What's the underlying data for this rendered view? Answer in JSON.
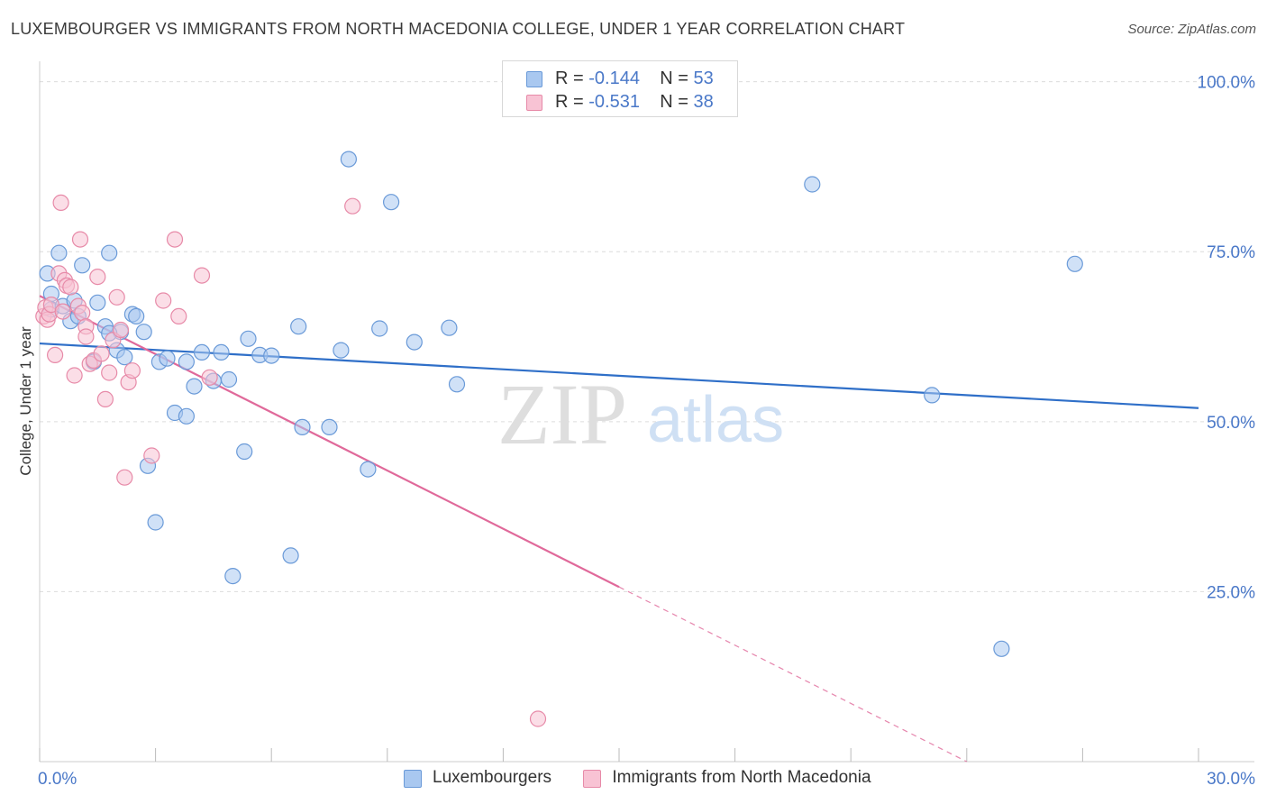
{
  "title": "LUXEMBOURGER VS IMMIGRANTS FROM NORTH MACEDONIA COLLEGE, UNDER 1 YEAR CORRELATION CHART",
  "source": "Source: ZipAtlas.com",
  "watermark": {
    "zip": "ZIP",
    "atlas": "atlas"
  },
  "legend_top": [
    {
      "r_label": "R = ",
      "r_value": "-0.144",
      "n_label": "N = ",
      "n_value": "53",
      "color": "#a9c8f0",
      "border": "#6a9ad8"
    },
    {
      "r_label": "R = ",
      "r_value": "-0.531",
      "n_label": "N = ",
      "n_value": "38",
      "color": "#f8c3d4",
      "border": "#e78aa8"
    }
  ],
  "legend_bottom": [
    {
      "label": "Luxembourgers",
      "color": "#a9c8f0",
      "border": "#6a9ad8"
    },
    {
      "label": "Immigrants from North Macedonia",
      "color": "#f8c3d4",
      "border": "#e78aa8"
    }
  ],
  "chart_data": {
    "type": "scatter",
    "title": "LUXEMBOURGER VS IMMIGRANTS FROM NORTH MACEDONIA COLLEGE, UNDER 1 YEAR CORRELATION CHART",
    "xlabel": "",
    "ylabel": "College, Under 1 year",
    "xlim": [
      0,
      30
    ],
    "ylim": [
      0,
      103
    ],
    "x_tick_labels": [
      {
        "value": 0,
        "label": "0.0%"
      },
      {
        "value": 30,
        "label": "30.0%"
      }
    ],
    "x_minor_ticks": [
      0,
      3,
      6,
      9,
      12,
      15,
      18,
      21,
      24,
      27,
      30
    ],
    "y_tick_labels": [
      {
        "value": 100,
        "label": "100.0%"
      },
      {
        "value": 75,
        "label": "75.0%"
      },
      {
        "value": 50,
        "label": "50.0%"
      },
      {
        "value": 25,
        "label": "25.0%"
      }
    ],
    "grid_y": [
      100,
      75,
      50,
      25
    ],
    "series": [
      {
        "name": "Luxembourgers",
        "color": "#a9c8f0",
        "stroke": "#6a9ad8",
        "line_color": "#2f6fc8",
        "trend": {
          "x0": 0,
          "y0": 61.5,
          "x1": 30,
          "y1": 52.0,
          "dash_from": null
        },
        "points": [
          [
            0.2,
            71.8
          ],
          [
            0.3,
            68.8
          ],
          [
            0.3,
            66.5
          ],
          [
            0.5,
            74.8
          ],
          [
            0.6,
            67.0
          ],
          [
            0.8,
            64.8
          ],
          [
            0.9,
            67.8
          ],
          [
            1.0,
            65.5
          ],
          [
            1.1,
            73.0
          ],
          [
            1.4,
            58.8
          ],
          [
            1.5,
            67.5
          ],
          [
            1.7,
            64.0
          ],
          [
            1.8,
            74.8
          ],
          [
            2.0,
            60.5
          ],
          [
            2.1,
            63.2
          ],
          [
            2.2,
            59.5
          ],
          [
            2.4,
            65.8
          ],
          [
            2.5,
            65.5
          ],
          [
            2.7,
            63.2
          ],
          [
            2.8,
            43.5
          ],
          [
            3.0,
            35.2
          ],
          [
            3.1,
            58.8
          ],
          [
            3.3,
            59.3
          ],
          [
            3.5,
            51.3
          ],
          [
            3.8,
            50.8
          ],
          [
            3.8,
            58.8
          ],
          [
            4.0,
            55.2
          ],
          [
            4.2,
            60.2
          ],
          [
            4.5,
            56.0
          ],
          [
            4.7,
            60.2
          ],
          [
            4.9,
            56.2
          ],
          [
            5.0,
            27.3
          ],
          [
            5.3,
            45.6
          ],
          [
            5.4,
            62.2
          ],
          [
            5.7,
            59.8
          ],
          [
            6.0,
            59.7
          ],
          [
            6.5,
            30.3
          ],
          [
            6.7,
            64.0
          ],
          [
            6.8,
            49.2
          ],
          [
            7.5,
            49.2
          ],
          [
            7.8,
            60.5
          ],
          [
            8.0,
            88.6
          ],
          [
            8.5,
            43.0
          ],
          [
            8.8,
            63.7
          ],
          [
            9.1,
            82.3
          ],
          [
            9.7,
            61.7
          ],
          [
            10.6,
            63.8
          ],
          [
            10.8,
            55.5
          ],
          [
            20.0,
            84.9
          ],
          [
            23.1,
            53.9
          ],
          [
            24.9,
            16.6
          ],
          [
            26.8,
            73.2
          ],
          [
            1.8,
            63.0
          ]
        ]
      },
      {
        "name": "Immigrants from North Macedonia",
        "color": "#f8c3d4",
        "stroke": "#e78aa8",
        "line_color": "#e0699a",
        "trend": {
          "x0": 0,
          "y0": 68.5,
          "x1": 24.0,
          "y1": 0,
          "dash_from": 15.0
        },
        "points": [
          [
            0.1,
            65.5
          ],
          [
            0.15,
            66.8
          ],
          [
            0.2,
            65.0
          ],
          [
            0.25,
            65.8
          ],
          [
            0.3,
            67.2
          ],
          [
            0.4,
            59.8
          ],
          [
            0.5,
            71.8
          ],
          [
            0.55,
            82.2
          ],
          [
            0.6,
            66.2
          ],
          [
            0.65,
            70.8
          ],
          [
            0.7,
            70.0
          ],
          [
            0.8,
            69.8
          ],
          [
            0.9,
            56.8
          ],
          [
            1.0,
            67.0
          ],
          [
            1.05,
            76.8
          ],
          [
            1.1,
            66.0
          ],
          [
            1.2,
            64.0
          ],
          [
            1.2,
            62.5
          ],
          [
            1.3,
            58.5
          ],
          [
            1.4,
            59.0
          ],
          [
            1.5,
            71.3
          ],
          [
            1.6,
            60.0
          ],
          [
            1.7,
            53.3
          ],
          [
            1.8,
            57.2
          ],
          [
            1.9,
            62.0
          ],
          [
            2.0,
            68.3
          ],
          [
            2.2,
            41.8
          ],
          [
            2.3,
            55.8
          ],
          [
            2.4,
            57.5
          ],
          [
            2.9,
            45.0
          ],
          [
            3.2,
            67.8
          ],
          [
            3.5,
            76.8
          ],
          [
            3.6,
            65.5
          ],
          [
            4.2,
            71.5
          ],
          [
            4.4,
            56.5
          ],
          [
            8.1,
            81.7
          ],
          [
            12.9,
            6.3
          ],
          [
            2.1,
            63.5
          ]
        ]
      }
    ]
  }
}
